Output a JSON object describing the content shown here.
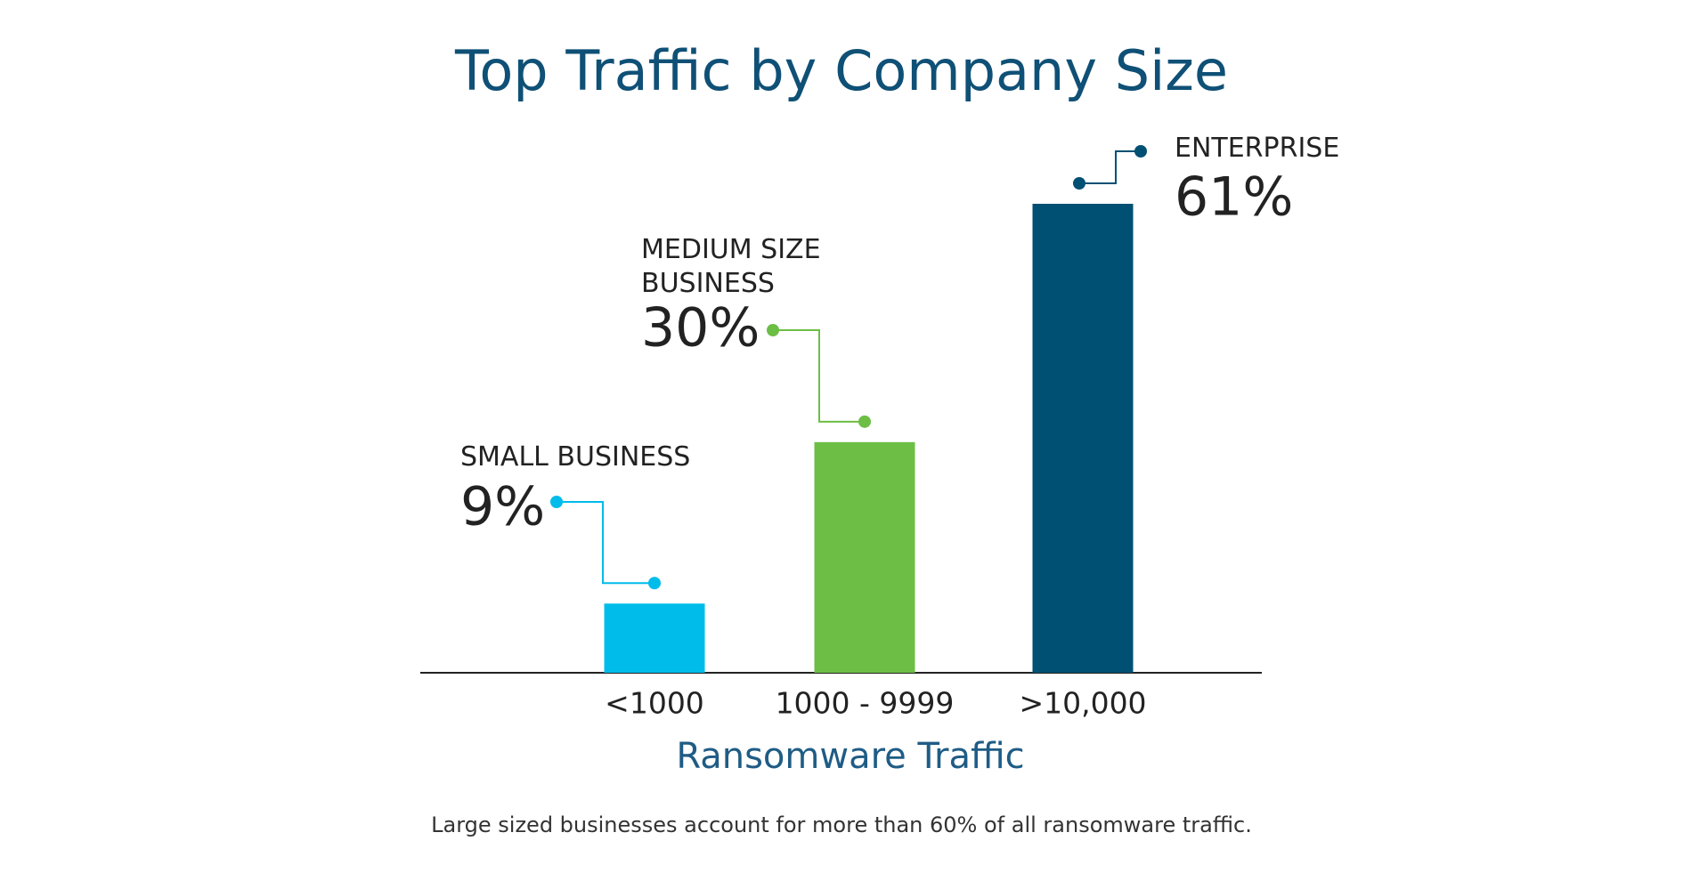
{
  "chart_data": {
    "type": "bar",
    "title": "Top Traffic by Company Size",
    "categories": [
      "<1000",
      "1000 - 9999",
      ">10,000"
    ],
    "values": [
      9,
      30,
      61
    ],
    "value_labels": [
      "9%",
      "30%",
      "61%"
    ],
    "bar_labels": [
      "SMALL BUSINESS",
      "MEDIUM SIZE BUSINESS",
      "ENTERPRISE"
    ],
    "colors": [
      "#00bceb",
      "#6cbe45",
      "#005073"
    ],
    "x_label": "Ransomware Traffic",
    "caption": "Large sized businesses account for more than 60% of all ransomware traffic."
  }
}
